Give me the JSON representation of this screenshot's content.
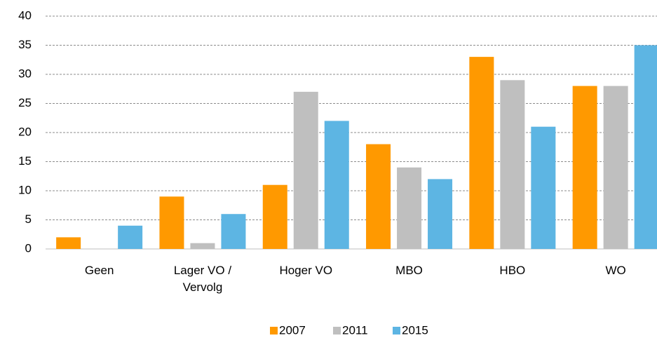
{
  "chart_data": {
    "type": "bar",
    "categories": [
      "Geen",
      "Lager VO / Vervolg",
      "Hoger VO",
      "MBO",
      "HBO",
      "WO"
    ],
    "series": [
      {
        "name": "2007",
        "color": "#ff9900",
        "values": [
          2,
          9,
          11,
          18,
          33,
          28
        ]
      },
      {
        "name": "2011",
        "color": "#bfbfbf",
        "values": [
          0,
          1,
          27,
          14,
          29,
          28
        ]
      },
      {
        "name": "2015",
        "color": "#5db5e3",
        "values": [
          4,
          6,
          22,
          12,
          21,
          35
        ]
      }
    ],
    "ylim": [
      0,
      40
    ],
    "yticks": [
      0,
      5,
      10,
      15,
      20,
      25,
      30,
      35,
      40
    ],
    "grid": true,
    "legend": "bottom"
  }
}
